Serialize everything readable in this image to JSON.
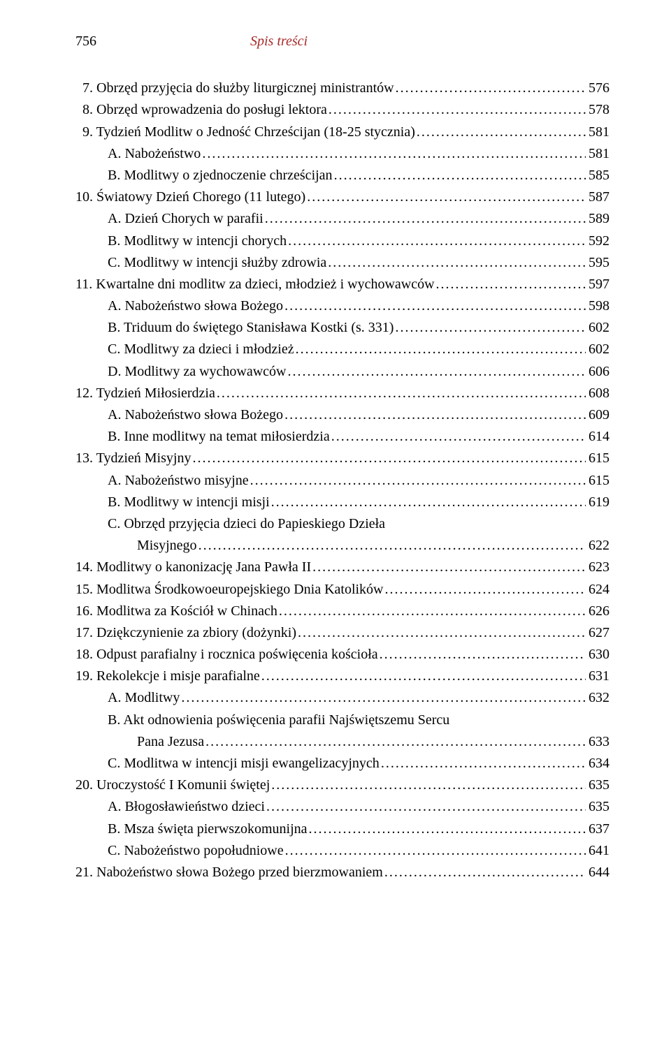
{
  "header": {
    "page_number": "756",
    "title": "Spis treści"
  },
  "entries": [
    {
      "indent": 0,
      "label": "  7. Obrzęd przyjęcia do służby liturgicznej ministrantów",
      "page": "576"
    },
    {
      "indent": 0,
      "label": "  8. Obrzęd wprowadzenia do posługi lektora",
      "page": "578"
    },
    {
      "indent": 0,
      "label": "  9. Tydzień Modlitw o Jedność Chrześcijan (18-25 stycznia)",
      "page": "581"
    },
    {
      "indent": 1,
      "label": "A. Nabożeństwo",
      "page": "581"
    },
    {
      "indent": 1,
      "label": "B. Modlitwy o zjednoczenie chrześcijan",
      "page": "585"
    },
    {
      "indent": 0,
      "label": "10. Światowy Dzień Chorego (11 lutego)",
      "page": "587"
    },
    {
      "indent": 1,
      "label": "A. Dzień Chorych w parafii",
      "page": "589"
    },
    {
      "indent": 1,
      "label": "B. Modlitwy w intencji chorych",
      "page": "592"
    },
    {
      "indent": 1,
      "label": "C. Modlitwy w intencji służby zdrowia",
      "page": "595"
    },
    {
      "indent": 0,
      "label": "11. Kwartalne dni modlitw za dzieci, młodzież i wychowawców",
      "page": "597"
    },
    {
      "indent": 1,
      "label": "A. Nabożeństwo słowa Bożego",
      "page": "598"
    },
    {
      "indent": 1,
      "label": "B. Triduum do świętego Stanisława Kostki (s. 331)",
      "page": "602"
    },
    {
      "indent": 1,
      "label": "C. Modlitwy za dzieci i młodzież",
      "page": "602"
    },
    {
      "indent": 1,
      "label": "D. Modlitwy za wychowawców",
      "page": "606"
    },
    {
      "indent": 0,
      "label": "12. Tydzień Miłosierdzia",
      "page": "608"
    },
    {
      "indent": 1,
      "label": "A. Nabożeństwo słowa Bożego",
      "page": "609"
    },
    {
      "indent": 1,
      "label": "B. Inne modlitwy na temat miłosierdzia",
      "page": "614"
    },
    {
      "indent": 0,
      "label": "13. Tydzień Misyjny",
      "page": "615"
    },
    {
      "indent": 1,
      "label": "A. Nabożeństwo misyjne",
      "page": "615"
    },
    {
      "indent": 1,
      "label": "B. Modlitwy w intencji misji",
      "page": "619"
    },
    {
      "indent": 1,
      "label": "C. Obrzęd przyjęcia dzieci do Papieskiego Dzieła",
      "page": null
    },
    {
      "indent": 2,
      "label": "Misyjnego",
      "page": "622"
    },
    {
      "indent": 0,
      "label": "14. Modlitwy o kanonizację Jana Pawła II",
      "page": "623"
    },
    {
      "indent": 0,
      "label": "15. Modlitwa Środkowoeuropejskiego Dnia Katolików",
      "page": "624"
    },
    {
      "indent": 0,
      "label": "16. Modlitwa za Kościół w Chinach",
      "page": "626"
    },
    {
      "indent": 0,
      "label": "17. Dziękczynienie za zbiory (dożynki)",
      "page": "627"
    },
    {
      "indent": 0,
      "label": "18. Odpust parafialny i rocznica poświęcenia kościoła",
      "page": "630"
    },
    {
      "indent": 0,
      "label": "19. Rekolekcje i misje parafialne",
      "page": "631"
    },
    {
      "indent": 1,
      "label": "A. Modlitwy",
      "page": "632"
    },
    {
      "indent": 1,
      "label": "B. Akt odnowienia poświęcenia parafii Najświętszemu Sercu",
      "page": null
    },
    {
      "indent": 2,
      "label": "Pana Jezusa",
      "page": "633"
    },
    {
      "indent": 1,
      "label": "C. Modlitwa w intencji misji ewangelizacyjnych",
      "page": "634"
    },
    {
      "indent": 0,
      "label": "20. Uroczystość I Komunii świętej",
      "page": "635"
    },
    {
      "indent": 1,
      "label": "A. Błogosławieństwo dzieci",
      "page": "635"
    },
    {
      "indent": 1,
      "label": "B. Msza święta pierwszokomunijna",
      "page": "637"
    },
    {
      "indent": 1,
      "label": "C. Nabożeństwo popołudniowe",
      "page": "641"
    },
    {
      "indent": 0,
      "label": "21. Nabożeństwo słowa Bożego przed bierzmowaniem",
      "page": "644"
    }
  ]
}
